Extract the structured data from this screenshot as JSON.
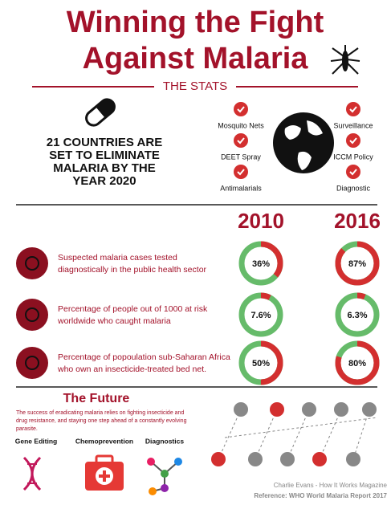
{
  "header": {
    "title_lines": [
      "Winning the Fight",
      "Against Malaria"
    ]
  },
  "stats": {
    "section_title": "THE STATS",
    "headline_lines": [
      "21 COUNTRIES ARE",
      "SET TO ELIMINATE",
      "MALARIA BY THE",
      "YEAR 2020"
    ],
    "checks_left": [
      "Mosquito Nets",
      "DEET Spray",
      "Antimalarials"
    ],
    "checks_right": [
      "Surveillance",
      "ICCM Policy",
      "Diagnostic"
    ]
  },
  "comparison": {
    "years": [
      "2010",
      "2016"
    ],
    "rows": [
      {
        "text_lines": [
          "Suspected malaria cases tested",
          "diagnostically in the public health sector"
        ],
        "values": [
          36,
          87
        ],
        "value_labels": [
          "36%",
          "87%"
        ]
      },
      {
        "text_lines": [
          "Percentage of people out of 1000 at risk",
          "worldwide who caught malaria"
        ],
        "values": [
          7.6,
          6.3
        ],
        "value_labels": [
          "7.6%",
          "6.3%"
        ]
      },
      {
        "text_lines": [
          "Percentage of popoulation sub-Saharan Africa",
          "who own an insecticide-treated bed net."
        ],
        "values": [
          50,
          80
        ],
        "value_labels": [
          "50%",
          "80%"
        ]
      }
    ]
  },
  "future": {
    "title": "The Future",
    "text_lines": [
      "The success of eradicating malaria relies on fighting insecticide and",
      "drug resistance, and staying one step ahead of a constantly evolving",
      "parasite."
    ],
    "items": [
      "Gene Editing",
      "Chemoprevention",
      "Diagnostics"
    ]
  },
  "footer": {
    "lines": [
      "Charlie Evans - How It Works Magazine",
      "Reference: WHO World Malaria Report 2017"
    ]
  }
}
